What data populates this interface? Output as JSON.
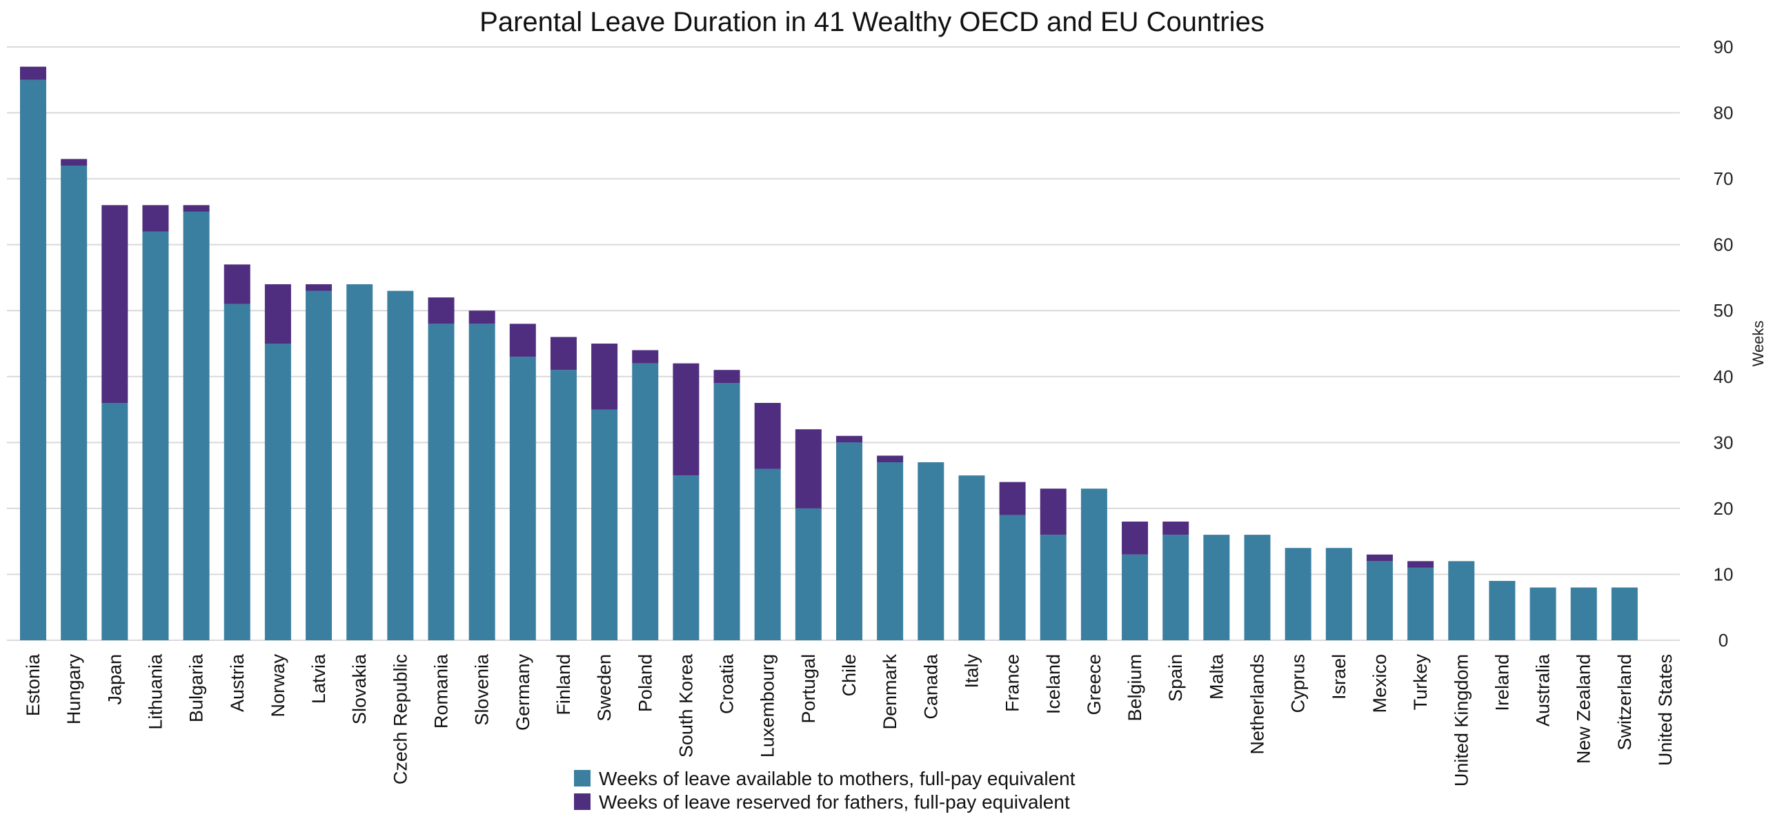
{
  "chart_data": {
    "type": "bar",
    "stacked": true,
    "title": "Parental Leave Duration in 41 Wealthy OECD and EU Countries",
    "ylabel": "Weeks",
    "xlabel": "",
    "ylim": [
      0,
      90
    ],
    "yticks": [
      0,
      10,
      20,
      30,
      40,
      50,
      60,
      70,
      80,
      90
    ],
    "y_axis_side": "right",
    "grid": true,
    "legend_position": "bottom",
    "categories": [
      "Estonia",
      "Hungary",
      "Japan",
      "Lithuania",
      "Bulgaria",
      "Austria",
      "Norway",
      "Latvia",
      "Slovakia",
      "Czech Republic",
      "Romania",
      "Slovenia",
      "Germany",
      "Finland",
      "Sweden",
      "Poland",
      "South Korea",
      "Croatia",
      "Luxembourg",
      "Portugal",
      "Chile",
      "Denmark",
      "Canada",
      "Italy",
      "France",
      "Iceland",
      "Greece",
      "Belgium",
      "Spain",
      "Malta",
      "Netherlands",
      "Cyprus",
      "Israel",
      "Mexico",
      "Turkey",
      "United Kingdom",
      "Ireland",
      "Australia",
      "New Zealand",
      "Switzerland",
      "United States"
    ],
    "series": [
      {
        "name": "Weeks of leave available to mothers, full-pay equivalent",
        "color": "#3b7fa0",
        "values": [
          85,
          72,
          36,
          62,
          65,
          51,
          45,
          53,
          54,
          53,
          48,
          48,
          43,
          41,
          35,
          42,
          25,
          39,
          26,
          20,
          30,
          27,
          27,
          25,
          19,
          16,
          23,
          13,
          16,
          16,
          16,
          14,
          14,
          12,
          11,
          12,
          9,
          8,
          8,
          8,
          0
        ]
      },
      {
        "name": "Weeks of leave reserved for fathers, full-pay equivalent",
        "color": "#4f2d7f",
        "values": [
          2,
          1,
          30,
          4,
          1,
          6,
          9,
          1,
          0,
          0,
          4,
          2,
          5,
          5,
          10,
          2,
          17,
          2,
          10,
          12,
          1,
          1,
          0,
          0,
          5,
          7,
          0,
          5,
          2,
          0,
          0,
          0,
          0,
          1,
          1,
          0,
          0,
          0,
          0,
          0,
          0
        ]
      }
    ]
  }
}
